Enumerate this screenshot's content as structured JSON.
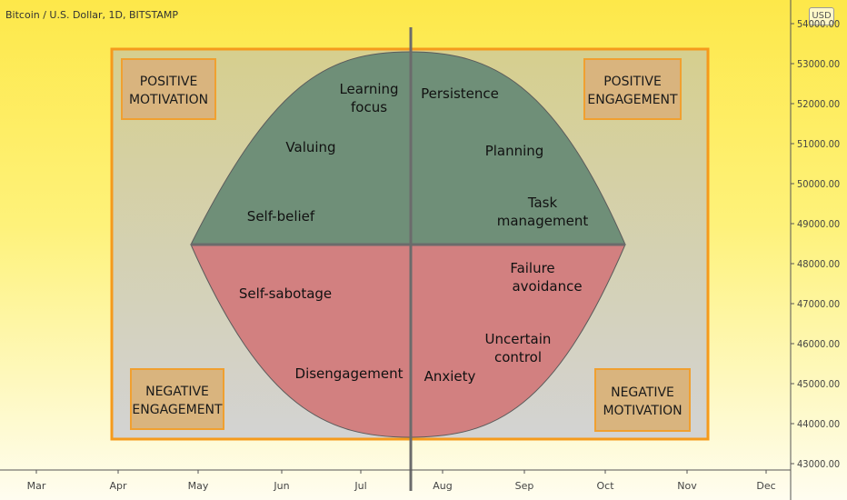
{
  "header": {
    "symbol": "Bitcoin / U.S. Dollar, 1D, BITSTAMP",
    "currency_badge": "USD"
  },
  "chart_data": {
    "type": "diagram",
    "title": "",
    "xlabel": "",
    "ylabel": "",
    "x_ticks": [
      "Mar",
      "Apr",
      "May",
      "Jun",
      "Jul",
      "Aug",
      "Sep",
      "Oct",
      "Nov",
      "Dec"
    ],
    "y_ticks": [
      "43000.00",
      "44000.00",
      "45000.00",
      "46000.00",
      "47000.00",
      "48000.00",
      "49000.00",
      "50000.00",
      "51000.00",
      "52000.00",
      "53000.00",
      "54000.00"
    ],
    "ylim": [
      43000,
      54000
    ],
    "quadrant_boxes": [
      {
        "key": "positive_motivation",
        "lines": [
          "POSITIVE",
          "MOTIVATION"
        ]
      },
      {
        "key": "positive_engagement",
        "lines": [
          "POSITIVE",
          "ENGAGEMENT"
        ]
      },
      {
        "key": "negative_engagement",
        "lines": [
          "NEGATIVE",
          "ENGAGEMENT"
        ]
      },
      {
        "key": "negative_motivation",
        "lines": [
          "NEGATIVE",
          "MOTIVATION"
        ]
      }
    ],
    "upper_region_labels": [
      [
        "Learning",
        "focus"
      ],
      [
        "Persistence"
      ],
      [
        "Valuing"
      ],
      [
        "Planning"
      ],
      [
        "Self-belief"
      ],
      [
        "Task",
        "management"
      ]
    ],
    "lower_region_labels": [
      [
        "Self-sabotage"
      ],
      [
        "Failure",
        "avoidance"
      ],
      [
        "Disengagement"
      ],
      [
        "Uncertain",
        "control"
      ],
      [
        "Anxiety"
      ]
    ],
    "colors": {
      "upper_region": "#6f8f78",
      "lower_region": "#d28080",
      "frame": "#f59a1c",
      "box_fill": "#d9b47e",
      "box_border": "#f0a030",
      "divider": "#6b6b6b"
    }
  }
}
